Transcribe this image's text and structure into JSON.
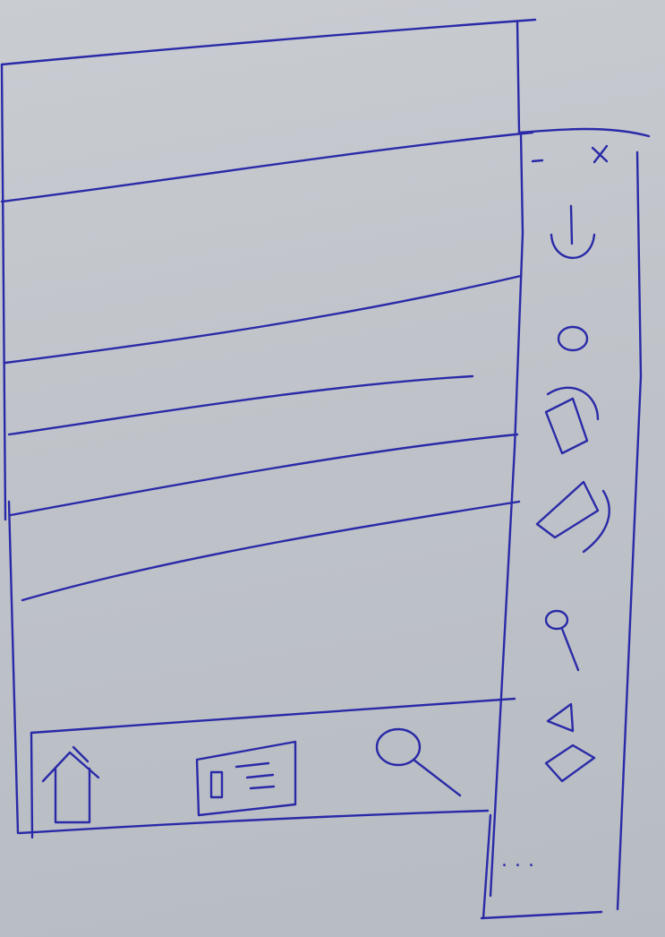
{
  "app": {
    "title": ""
  },
  "content": {
    "list_items": [
      {
        "label": ""
      },
      {
        "label": ""
      },
      {
        "label": ""
      },
      {
        "label": ""
      },
      {
        "label": ""
      }
    ]
  },
  "bottom_nav": {
    "items": [
      {
        "icon": "home-icon"
      },
      {
        "icon": "card-icon"
      },
      {
        "icon": "search-icon"
      }
    ]
  },
  "side_toolbar": {
    "window_controls": {
      "minimize": "−",
      "close": "×"
    },
    "tools": [
      {
        "icon": "anchor-icon"
      },
      {
        "icon": "circle-icon"
      },
      {
        "icon": "rotate-shape-icon"
      },
      {
        "icon": "skew-shape-icon"
      },
      {
        "icon": "pin-icon"
      },
      {
        "icon": "flip-icon"
      }
    ],
    "footer": {
      "more": "..."
    }
  },
  "colors": {
    "ink": "#2a2aa8",
    "paper": "#c4c8ce"
  }
}
